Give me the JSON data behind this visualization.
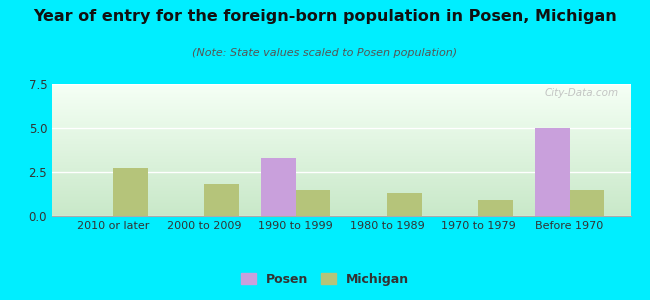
{
  "title": "Year of entry for the foreign-born population in Posen, Michigan",
  "subtitle": "(Note: State values scaled to Posen population)",
  "categories": [
    "2010 or later",
    "2000 to 2009",
    "1990 to 1999",
    "1980 to 1989",
    "1970 to 1979",
    "Before 1970"
  ],
  "posen_values": [
    0,
    0,
    3.3,
    0,
    0,
    5.0
  ],
  "michigan_values": [
    2.7,
    1.8,
    1.5,
    1.3,
    0.9,
    1.5
  ],
  "posen_color": "#c9a0dc",
  "michigan_color": "#b5c47a",
  "background_color": "#00eeff",
  "plot_bg_top": "#f5fff5",
  "plot_bg_bottom": "#c8e8c8",
  "ylim": [
    0,
    7.5
  ],
  "yticks": [
    0,
    2.5,
    5,
    7.5
  ],
  "bar_width": 0.38,
  "legend_labels": [
    "Posen",
    "Michigan"
  ],
  "watermark": "City-Data.com",
  "title_fontsize": 11.5,
  "subtitle_fontsize": 8
}
